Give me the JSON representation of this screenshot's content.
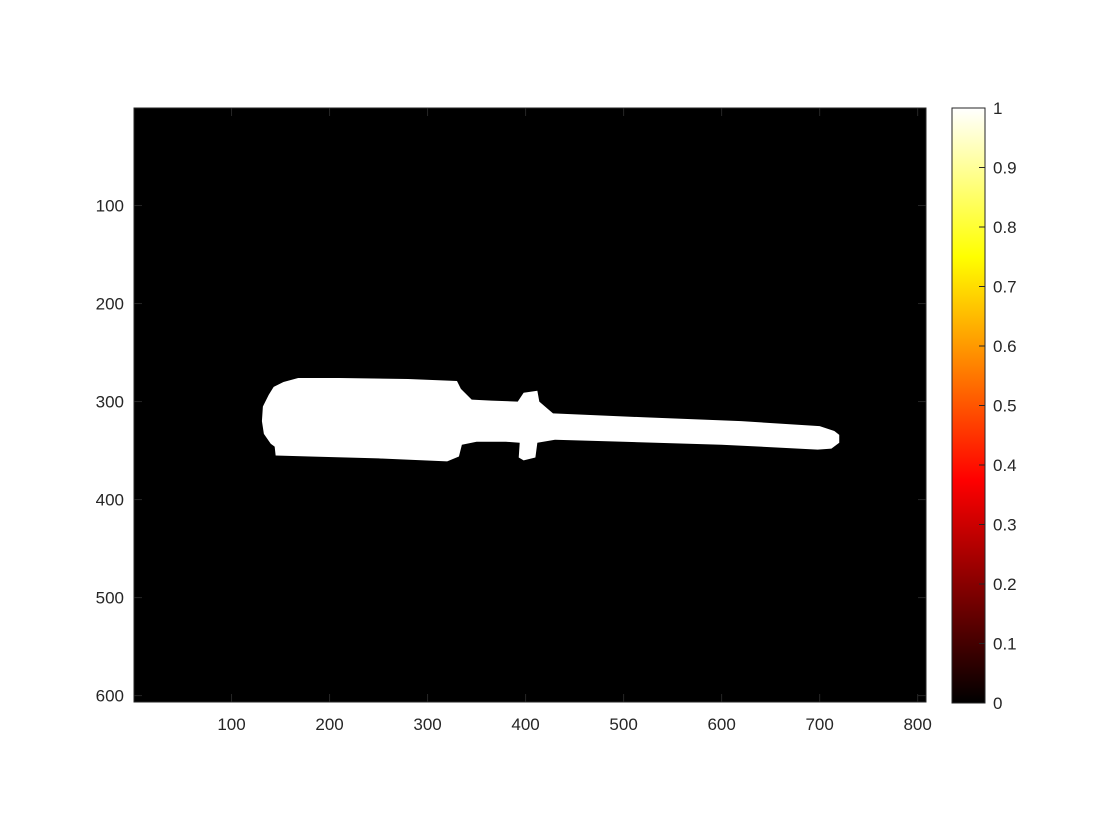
{
  "chart_data": {
    "type": "heatmap",
    "title": "",
    "xlabel": "",
    "ylabel": "",
    "xlim": [
      0.5,
      808.5
    ],
    "ylim": [
      0.5,
      606.5
    ],
    "y_reversed": true,
    "x_ticks": [
      100,
      200,
      300,
      400,
      500,
      600,
      700,
      800
    ],
    "x_tick_labels": [
      "100",
      "200",
      "300",
      "400",
      "500",
      "600",
      "700",
      "800"
    ],
    "y_ticks": [
      100,
      200,
      300,
      400,
      500,
      600
    ],
    "y_tick_labels": [
      "100",
      "200",
      "300",
      "400",
      "500",
      "600"
    ],
    "colormap": "hot",
    "colormap_stops": [
      "#000000",
      "#ff0000",
      "#ffff00",
      "#ffffff"
    ],
    "background_value": 0,
    "foreground_value": 1,
    "colorbar": {
      "range": [
        0,
        1
      ],
      "ticks": [
        0,
        0.1,
        0.2,
        0.3,
        0.4,
        0.5,
        0.6,
        0.7,
        0.8,
        0.9,
        1
      ],
      "tick_labels": [
        "0",
        "0.1",
        "0.2",
        "0.3",
        "0.4",
        "0.5",
        "0.6",
        "0.7",
        "0.8",
        "0.9",
        "1"
      ]
    },
    "foreground_region": {
      "description_value": 1,
      "outline": [
        [
          138,
          293
        ],
        [
          143,
          285
        ],
        [
          153,
          280
        ],
        [
          168,
          276
        ],
        [
          210,
          276
        ],
        [
          280,
          277
        ],
        [
          330,
          279
        ],
        [
          334,
          287
        ],
        [
          345,
          298
        ],
        [
          365,
          299
        ],
        [
          392,
          300
        ],
        [
          398,
          291
        ],
        [
          412,
          289
        ],
        [
          414,
          300
        ],
        [
          422,
          307
        ],
        [
          428,
          312
        ],
        [
          520,
          316
        ],
        [
          620,
          320
        ],
        [
          700,
          325
        ],
        [
          715,
          330
        ],
        [
          720,
          334
        ],
        [
          720,
          342
        ],
        [
          712,
          348
        ],
        [
          698,
          349
        ],
        [
          600,
          344
        ],
        [
          500,
          341
        ],
        [
          430,
          339
        ],
        [
          412,
          342
        ],
        [
          410,
          357
        ],
        [
          398,
          360
        ],
        [
          393,
          357
        ],
        [
          394,
          342
        ],
        [
          380,
          341
        ],
        [
          350,
          341
        ],
        [
          335,
          344
        ],
        [
          332,
          356
        ],
        [
          320,
          361
        ],
        [
          250,
          358
        ],
        [
          180,
          356
        ],
        [
          145,
          355
        ],
        [
          144,
          346
        ],
        [
          140,
          343
        ],
        [
          133,
          333
        ],
        [
          131,
          320
        ],
        [
          132,
          305
        ]
      ]
    }
  }
}
